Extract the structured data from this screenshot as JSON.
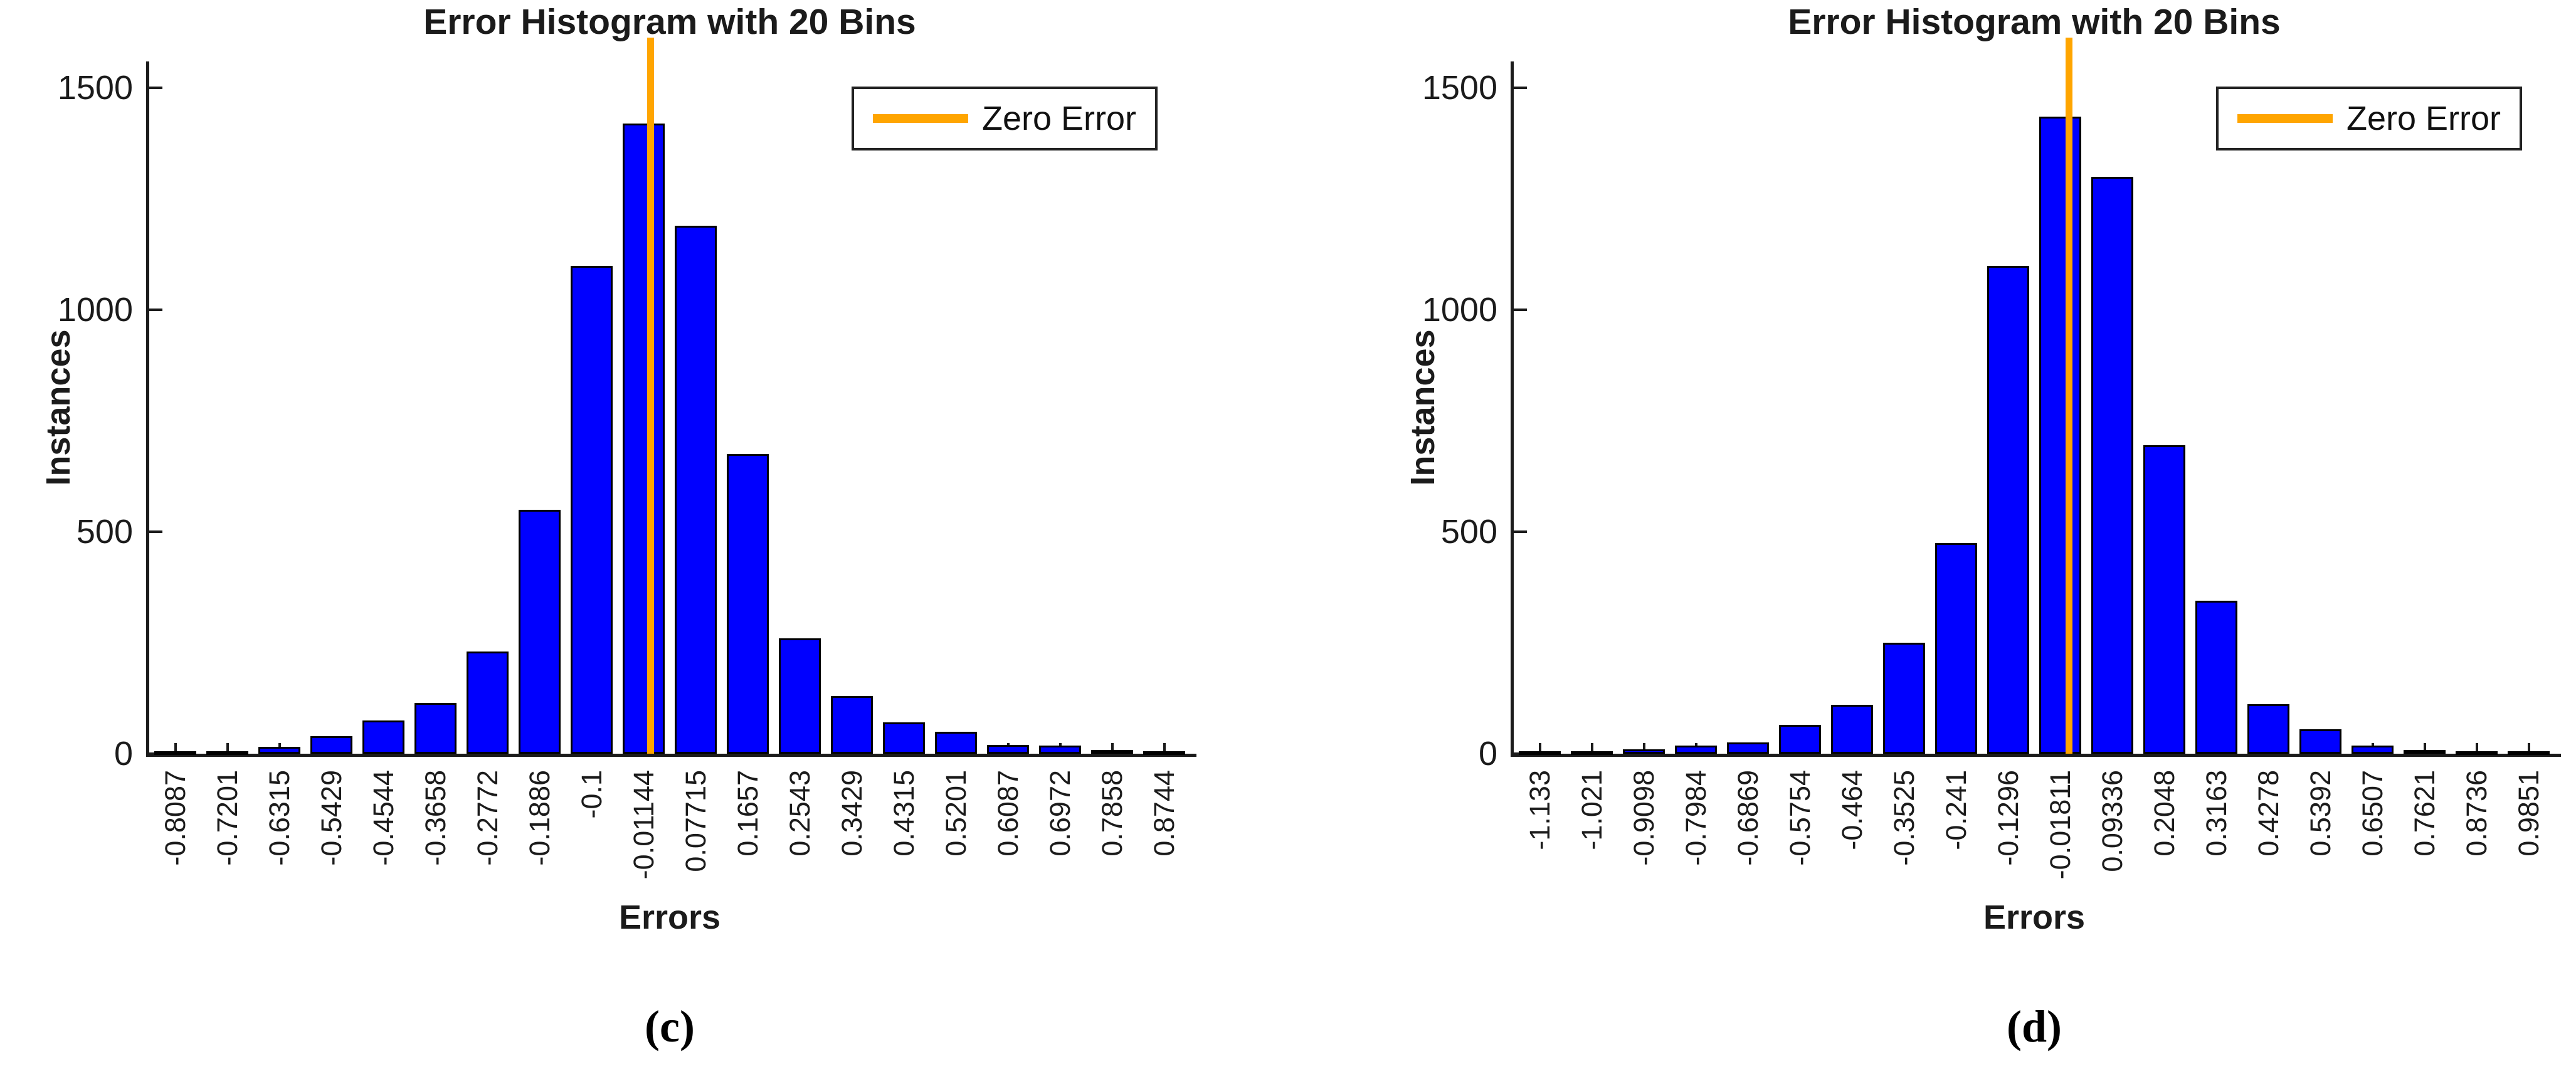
{
  "chart_data": [
    {
      "type": "bar",
      "panel_label": "(c)",
      "title": "Error Histogram with 20 Bins",
      "xlabel": "Errors",
      "ylabel": "Instances",
      "legend": {
        "position": "top-right",
        "entries": [
          {
            "label": "Zero Error",
            "marker": "line",
            "color": "#FFA500"
          }
        ]
      },
      "yticks": [
        0,
        500,
        1000,
        1500
      ],
      "ylim": [
        0,
        1560
      ],
      "grid": false,
      "x_tick_rotation_deg": 90,
      "categories": [
        "-0.8087",
        "-0.7201",
        "-0.6315",
        "-0.5429",
        "-0.4544",
        "-0.3658",
        "-0.2772",
        "-0.1886",
        "-0.1",
        "-0.01144",
        "0.07715",
        "0.1657",
        "0.2543",
        "0.3429",
        "0.4315",
        "0.5201",
        "0.6087",
        "0.6972",
        "0.7858",
        "0.8744"
      ],
      "values": [
        2,
        5,
        16,
        40,
        75,
        115,
        230,
        550,
        1100,
        1420,
        1190,
        675,
        260,
        130,
        70,
        50,
        20,
        18,
        8,
        5
      ],
      "zero_error_line": {
        "x": 0,
        "label": "Zero Error"
      },
      "colors": {
        "bar_fill": "#0000FF",
        "bar_edge": "#000000",
        "zero_line": "#FFA500",
        "axis": "#1b1b1b"
      }
    },
    {
      "type": "bar",
      "panel_label": "(d)",
      "title": "Error Histogram with 20 Bins",
      "xlabel": "Errors",
      "ylabel": "Instances",
      "legend": {
        "position": "top-right",
        "entries": [
          {
            "label": "Zero Error",
            "marker": "line",
            "color": "#FFA500"
          }
        ]
      },
      "yticks": [
        0,
        500,
        1000,
        1500
      ],
      "ylim": [
        0,
        1560
      ],
      "grid": false,
      "x_tick_rotation_deg": 90,
      "categories": [
        "-1.133",
        "-1.021",
        "-0.9098",
        "-0.7984",
        "-0.6869",
        "-0.5754",
        "-0.464",
        "-0.3525",
        "-0.241",
        "-0.1296",
        "-0.01811",
        "0.09336",
        "0.2048",
        "0.3163",
        "0.4278",
        "0.5392",
        "0.6507",
        "0.7621",
        "0.8736",
        "0.9851"
      ],
      "values": [
        2,
        3,
        10,
        18,
        25,
        65,
        110,
        250,
        475,
        1100,
        1435,
        1300,
        695,
        345,
        112,
        55,
        18,
        8,
        4,
        2
      ],
      "zero_error_line": {
        "x": 0,
        "label": "Zero Error"
      },
      "colors": {
        "bar_fill": "#0000FF",
        "bar_edge": "#000000",
        "zero_line": "#FFA500",
        "axis": "#1b1b1b"
      }
    }
  ]
}
